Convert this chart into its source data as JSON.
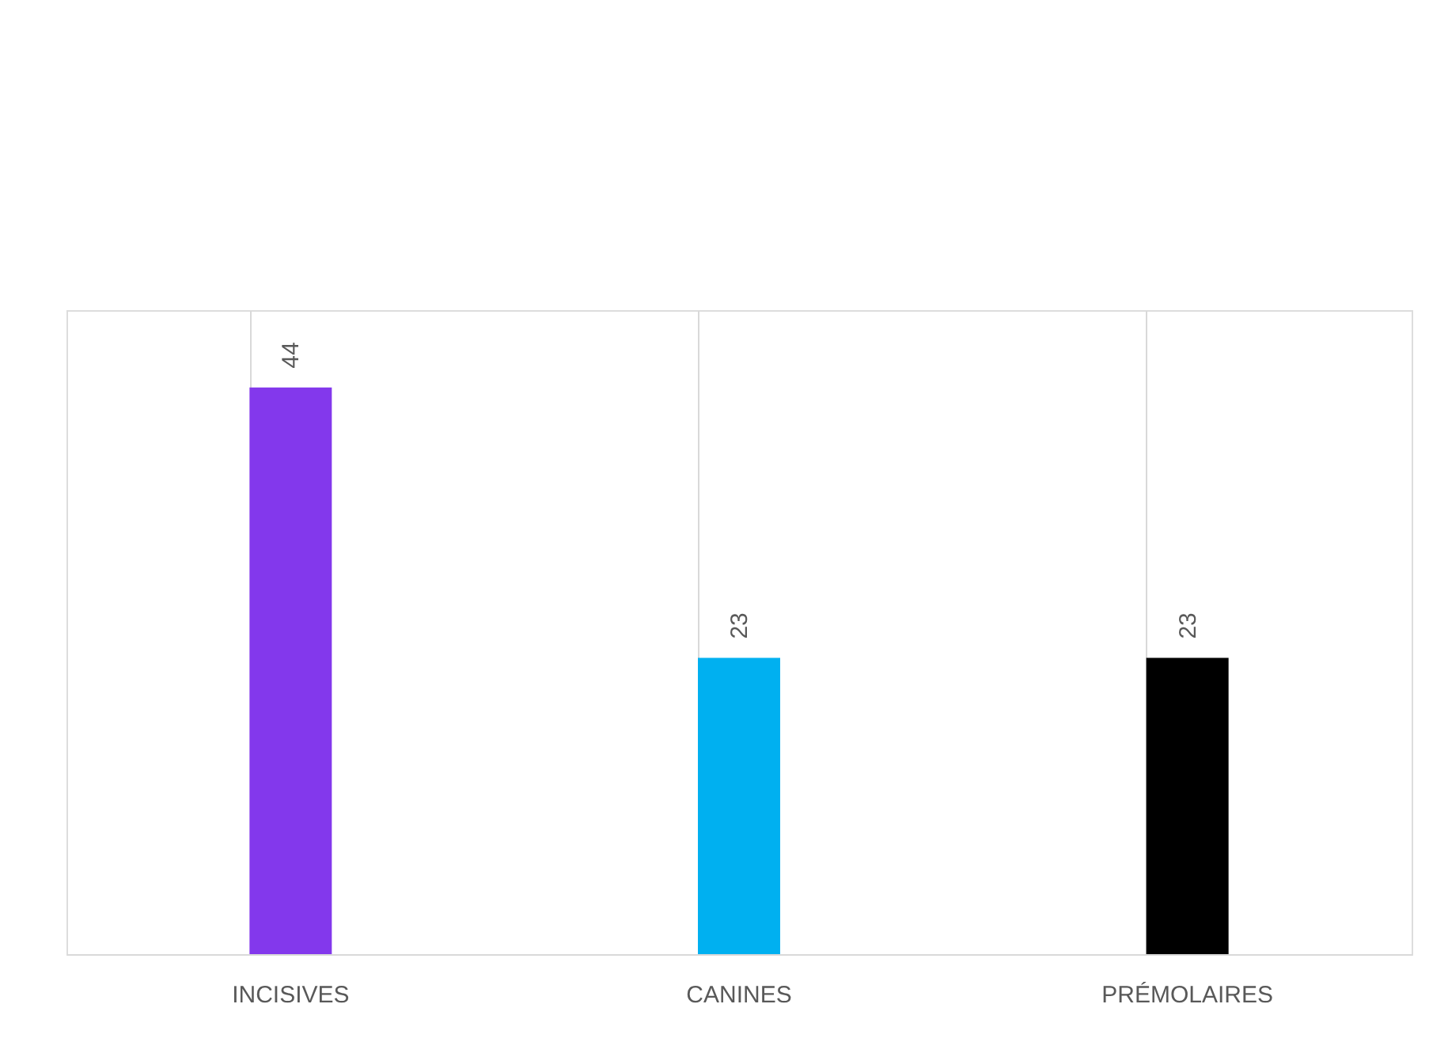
{
  "chart_data": {
    "type": "bar",
    "categories": [
      "INCISIVES",
      "CANINES",
      "PRÉMOLAIRES"
    ],
    "values": [
      44,
      23,
      23
    ],
    "colors": [
      "#8338ec",
      "#00b0f0",
      "#000000"
    ],
    "ylim": [
      0,
      50
    ],
    "data_labels": true,
    "grid": "x",
    "tick_labels": "x"
  }
}
